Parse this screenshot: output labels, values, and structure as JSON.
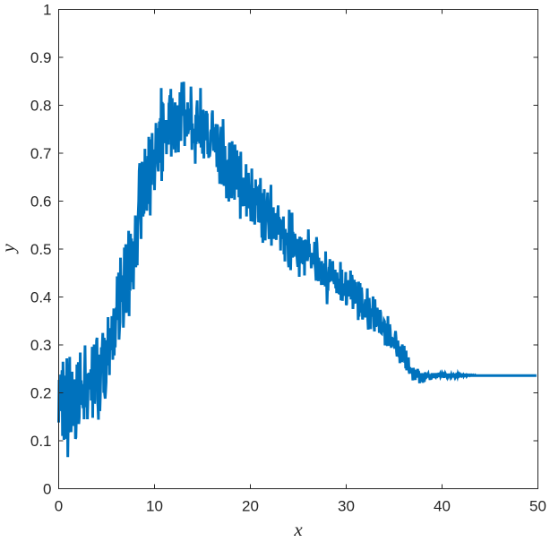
{
  "chart_data": {
    "type": "line",
    "title": "",
    "xlabel": "x",
    "ylabel": "y",
    "xlim": [
      0,
      50
    ],
    "ylim": [
      0,
      1
    ],
    "xticks": [
      0,
      10,
      20,
      30,
      40,
      50
    ],
    "yticks": [
      0,
      0.1,
      0.2,
      0.3,
      0.4,
      0.5,
      0.6,
      0.7,
      0.8,
      0.9,
      1
    ],
    "ytick_labels": [
      "0",
      "0.1",
      "0.2",
      "0.3",
      "0.4",
      "0.5",
      "0.6",
      "0.7",
      "0.8",
      "0.9",
      "1"
    ],
    "grid": false,
    "series_color": "#0072BD",
    "series": [
      {
        "name": "",
        "x_start": 0,
        "x_step": 0.05,
        "values": [
          0.138,
          0.227,
          0.201,
          0.162,
          0.238,
          0.209,
          0.219,
          0.247,
          0.11,
          0.265,
          0.214,
          0.102,
          0.114,
          0.236,
          0.131,
          0.104,
          0.189,
          0.272,
          0.22,
          0.066,
          0.145,
          0.117,
          0.165,
          0.275,
          0.137,
          0.188,
          0.118,
          0.182,
          0.244,
          0.177,
          0.207,
          0.131,
          0.15,
          0.216,
          0.228,
          0.104,
          0.107,
          0.154,
          0.259,
          0.136,
          0.213,
          0.264,
          0.135,
          0.149,
          0.198,
          0.284,
          0.175,
          0.226,
          0.207,
          0.209,
          0.182,
          0.168,
          0.213,
          0.145,
          0.242,
          0.299,
          0.218,
          0.194,
          0.17,
          0.24,
          0.145,
          0.185,
          0.241,
          0.232,
          0.242,
          0.239,
          0.207,
          0.249,
          0.184,
          0.231,
          0.296,
          0.148,
          0.259,
          0.194,
          0.301,
          0.177,
          0.287,
          0.27,
          0.249,
          0.309,
          0.315,
          0.186,
          0.172,
          0.144,
          0.28,
          0.167,
          0.162,
          0.196,
          0.247,
          0.295,
          0.255,
          0.299,
          0.325,
          0.288,
          0.2,
          0.315,
          0.197,
          0.188,
          0.204,
          0.222,
          0.31,
          0.282,
          0.257,
          0.358,
          0.267,
          0.292,
          0.237,
          0.335,
          0.325,
          0.308,
          0.289,
          0.36,
          0.317,
          0.269,
          0.335,
          0.376,
          0.278,
          0.349,
          0.295,
          0.344,
          0.378,
          0.369,
          0.443,
          0.378,
          0.352,
          0.451,
          0.311,
          0.333,
          0.347,
          0.482,
          0.436,
          0.401,
          0.39,
          0.394,
          0.445,
          0.336,
          0.369,
          0.503,
          0.37,
          0.454,
          0.51,
          0.367,
          0.378,
          0.479,
          0.475,
          0.459,
          0.538,
          0.36,
          0.473,
          0.413,
          0.532,
          0.435,
          0.522,
          0.431,
          0.516,
          0.445,
          0.416,
          0.495,
          0.491,
          0.501,
          0.57,
          0.462,
          0.509,
          0.553,
          0.466,
          0.548,
          0.574,
          0.6,
          0.663,
          0.679,
          0.652,
          0.577,
          0.521,
          0.666,
          0.682,
          0.613,
          0.568,
          0.579,
          0.574,
          0.612,
          0.709,
          0.6,
          0.672,
          0.629,
          0.58,
          0.643,
          0.694,
          0.594,
          0.734,
          0.645,
          0.729,
          0.57,
          0.66,
          0.646,
          0.634,
          0.742,
          0.648,
          0.672,
          0.659,
          0.708,
          0.623,
          0.671,
          0.697,
          0.763,
          0.701,
          0.685,
          0.752,
          0.673,
          0.662,
          0.726,
          0.766,
          0.697,
          0.773,
          0.68,
          0.836,
          0.642,
          0.807,
          0.662,
          0.804,
          0.742,
          0.721,
          0.743,
          0.728,
          0.74,
          0.769,
          0.698,
          0.758,
          0.753,
          0.723,
          0.718,
          0.803,
          0.806,
          0.821,
          0.771,
          0.834,
          0.693,
          0.778,
          0.815,
          0.735,
          0.742,
          0.788,
          0.708,
          0.725,
          0.806,
          0.701,
          0.784,
          0.737,
          0.767,
          0.8,
          0.772,
          0.702,
          0.8,
          0.733,
          0.827,
          0.73,
          0.726,
          0.809,
          0.848,
          0.822,
          0.778,
          0.801,
          0.849,
          0.776,
          0.715,
          0.791,
          0.738,
          0.739,
          0.735,
          0.758,
          0.806,
          0.74,
          0.749,
          0.785,
          0.793,
          0.749,
          0.758,
          0.839,
          0.798,
          0.707,
          0.762,
          0.721,
          0.732,
          0.737,
          0.751,
          0.746,
          0.678,
          0.78,
          0.719,
          0.793,
          0.81,
          0.762,
          0.767,
          0.724,
          0.778,
          0.72,
          0.732,
          0.836,
          0.712,
          0.725,
          0.753,
          0.699,
          0.79,
          0.788,
          0.689,
          0.769,
          0.727,
          0.737,
          0.765,
          0.788,
          0.78,
          0.783,
          0.698,
          0.721,
          0.69,
          0.715,
          0.693,
          0.703,
          0.743,
          0.749,
          0.733,
          0.782,
          0.789,
          0.729,
          0.705,
          0.754,
          0.746,
          0.71,
          0.702,
          0.761,
          0.735,
          0.671,
          0.76,
          0.753,
          0.661,
          0.689,
          0.683,
          0.636,
          0.694,
          0.738,
          0.755,
          0.695,
          0.635,
          0.66,
          0.771,
          0.709,
          0.632,
          0.636,
          0.715,
          0.645,
          0.684,
          0.606,
          0.631,
          0.685,
          0.654,
          0.687,
          0.599,
          0.718,
          0.722,
          0.611,
          0.651,
          0.617,
          0.606,
          0.725,
          0.627,
          0.717,
          0.629,
          0.642,
          0.603,
          0.718,
          0.67,
          0.702,
          0.624,
          0.706,
          0.644,
          0.659,
          0.685,
          0.608,
          0.642,
          0.694,
          0.563,
          0.703,
          0.595,
          0.648,
          0.638,
          0.589,
          0.649,
          0.597,
          0.636,
          0.59,
          0.605,
          0.614,
          0.677,
          0.568,
          0.635,
          0.652,
          0.611,
          0.659,
          0.607,
          0.585,
          0.613,
          0.59,
          0.558,
          0.627,
          0.668,
          0.596,
          0.557,
          0.627,
          0.605,
          0.595,
          0.551,
          0.567,
          0.645,
          0.591,
          0.631,
          0.591,
          0.612,
          0.617,
          0.556,
          0.61,
          0.634,
          0.555,
          0.648,
          0.565,
          0.578,
          0.524,
          0.615,
          0.513,
          0.617,
          0.54,
          0.625,
          0.585,
          0.518,
          0.572,
          0.559,
          0.565,
          0.595,
          0.618,
          0.563,
          0.549,
          0.521,
          0.533,
          0.566,
          0.602,
          0.634,
          0.507,
          0.585,
          0.567,
          0.576,
          0.587,
          0.521,
          0.575,
          0.531,
          0.575,
          0.551,
          0.519,
          0.557,
          0.534,
          0.575,
          0.591,
          0.53,
          0.567,
          0.54,
          0.563,
          0.497,
          0.561,
          0.541,
          0.554,
          0.547,
          0.521,
          0.568,
          0.489,
          0.541,
          0.474,
          0.542,
          0.524,
          0.508,
          0.534,
          0.512,
          0.532,
          0.476,
          0.462,
          0.582,
          0.557,
          0.529,
          0.456,
          0.501,
          0.516,
          0.576,
          0.482,
          0.536,
          0.506,
          0.484,
          0.517,
          0.532,
          0.519,
          0.521,
          0.492,
          0.487,
          0.472,
          0.463,
          0.521,
          0.503,
          0.442,
          0.526,
          0.47,
          0.507,
          0.524,
          0.472,
          0.515,
          0.493,
          0.468,
          0.518,
          0.513,
          0.445,
          0.519,
          0.517,
          0.496,
          0.518,
          0.5,
          0.475,
          0.486,
          0.541,
          0.498,
          0.511,
          0.488,
          0.489,
          0.492,
          0.46,
          0.47,
          0.492,
          0.487,
          0.481,
          0.468,
          0.485,
          0.515,
          0.466,
          0.455,
          0.434,
          0.525,
          0.512,
          0.485,
          0.468,
          0.433,
          0.482,
          0.446,
          0.452,
          0.457,
          0.47,
          0.425,
          0.475,
          0.431,
          0.426,
          0.43,
          0.444,
          0.44,
          0.47,
          0.422,
          0.495,
          0.434,
          0.434,
          0.385,
          0.419,
          0.413,
          0.447,
          0.46,
          0.46,
          0.479,
          0.435,
          0.436,
          0.451,
          0.458,
          0.448,
          0.475,
          0.432,
          0.434,
          0.427,
          0.443,
          0.457,
          0.418,
          0.451,
          0.408,
          0.451,
          0.417,
          0.41,
          0.424,
          0.406,
          0.438,
          0.405,
          0.473,
          0.393,
          0.418,
          0.457,
          0.392,
          0.425,
          0.422,
          0.428,
          0.406,
          0.403,
          0.422,
          0.452,
          0.383,
          0.386,
          0.427,
          0.402,
          0.421,
          0.435,
          0.401,
          0.435,
          0.408,
          0.455,
          0.395,
          0.405,
          0.446,
          0.435,
          0.375,
          0.396,
          0.41,
          0.436,
          0.386,
          0.407,
          0.431,
          0.388,
          0.391,
          0.417,
          0.4,
          0.352,
          0.432,
          0.359,
          0.405,
          0.429,
          0.367,
          0.398,
          0.42,
          0.404,
          0.353,
          0.358,
          0.373,
          0.363,
          0.358,
          0.385,
          0.395,
          0.357,
          0.392,
          0.38,
          0.418,
          0.353,
          0.332,
          0.374,
          0.398,
          0.374,
          0.37,
          0.333,
          0.376,
          0.373,
          0.359,
          0.365,
          0.401,
          0.386,
          0.338,
          0.328,
          0.395,
          0.359,
          0.338,
          0.341,
          0.375,
          0.375,
          0.366,
          0.34,
          0.36,
          0.325,
          0.358,
          0.373,
          0.367,
          0.325,
          0.324,
          0.336,
          0.348,
          0.326,
          0.34,
          0.351,
          0.349,
          0.299,
          0.344,
          0.301,
          0.345,
          0.304,
          0.298,
          0.36,
          0.298,
          0.328,
          0.31,
          0.343,
          0.329,
          0.304,
          0.294,
          0.317,
          0.297,
          0.311,
          0.315,
          0.306,
          0.305,
          0.292,
          0.321,
          0.329,
          0.315,
          0.286,
          0.276,
          0.291,
          0.309,
          0.281,
          0.275,
          0.285,
          0.262,
          0.297,
          0.293,
          0.283,
          0.264,
          0.301,
          0.288,
          0.286,
          0.267,
          0.298,
          0.263,
          0.287,
          0.251,
          0.288,
          0.247,
          0.256,
          0.264,
          0.265,
          0.274,
          0.245,
          0.24,
          0.253,
          0.25,
          0.244,
          0.251,
          0.246,
          0.249,
          0.226,
          0.252,
          0.248,
          0.243,
          0.248,
          0.227,
          0.238,
          0.234,
          0.234,
          0.238,
          0.25,
          0.242,
          0.246,
          0.238,
          0.22,
          0.235,
          0.238,
          0.223,
          0.241,
          0.232,
          0.237,
          0.221,
          0.241,
          0.231,
          0.223,
          0.232,
          0.243,
          0.234,
          0.232,
          0.233,
          0.234,
          0.238,
          0.24,
          0.234,
          0.239,
          0.232,
          0.227,
          0.233,
          0.228,
          0.232,
          0.241,
          0.231,
          0.234,
          0.239,
          0.231,
          0.241,
          0.234,
          0.233,
          0.241,
          0.237,
          0.231,
          0.236,
          0.239,
          0.233,
          0.242,
          0.233,
          0.238,
          0.24,
          0.234,
          0.236,
          0.239,
          0.232,
          0.24,
          0.238,
          0.239,
          0.231,
          0.241,
          0.234,
          0.24,
          0.238,
          0.235,
          0.233,
          0.239,
          0.232,
          0.24,
          0.236,
          0.239,
          0.233,
          0.24,
          0.235,
          0.238,
          0.234,
          0.236,
          0.237,
          0.238,
          0.232,
          0.24,
          0.236,
          0.239,
          0.233,
          0.235,
          0.238,
          0.237,
          0.234,
          0.239,
          0.236,
          0.238,
          0.235,
          0.236,
          0.238,
          0.236,
          0.237,
          0.235,
          0.236,
          0.237,
          0.238,
          0.235,
          0.237,
          0.236,
          0.237,
          0.236,
          0.237,
          0.235,
          0.237,
          0.236,
          0.237,
          0.236,
          0.236,
          0.237,
          0.236,
          0.237,
          0.236,
          0.236,
          0.237,
          0.236,
          0.236,
          0.237,
          0.236,
          0.236,
          0.236,
          0.237,
          0.236,
          0.236,
          0.236,
          0.236,
          0.236,
          0.236,
          0.236,
          0.236,
          0.236,
          0.236,
          0.236,
          0.236,
          0.236,
          0.236,
          0.236,
          0.236,
          0.236,
          0.236,
          0.236,
          0.236,
          0.236,
          0.236,
          0.236,
          0.236,
          0.236,
          0.236,
          0.236,
          0.236,
          0.236,
          0.236,
          0.236,
          0.236,
          0.236,
          0.236,
          0.236,
          0.236,
          0.236,
          0.236,
          0.236,
          0.236,
          0.236,
          0.236,
          0.236,
          0.236,
          0.236,
          0.236,
          0.236,
          0.236,
          0.236,
          0.236,
          0.236,
          0.236,
          0.236,
          0.236,
          0.236,
          0.236,
          0.236,
          0.236,
          0.236,
          0.236,
          0.236,
          0.236,
          0.236,
          0.236,
          0.236,
          0.236,
          0.236,
          0.236,
          0.236,
          0.236,
          0.236,
          0.236,
          0.236,
          0.236,
          0.236,
          0.236,
          0.236,
          0.236,
          0.236,
          0.236,
          0.236,
          0.236,
          0.236,
          0.236,
          0.236,
          0.236,
          0.236,
          0.236,
          0.236,
          0.236,
          0.236,
          0.236,
          0.236,
          0.236,
          0.236,
          0.236,
          0.236,
          0.236,
          0.236,
          0.236,
          0.236,
          0.236,
          0.236,
          0.236,
          0.236,
          0.236,
          0.236,
          0.236,
          0.236,
          0.236,
          0.236,
          0.236,
          0.236,
          0.236,
          0.236,
          0.236,
          0.236,
          0.236,
          0.236,
          0.236,
          0.236,
          0.236,
          0.236,
          0.236,
          0.236,
          0.236,
          0.236,
          0.236
        ]
      }
    ]
  }
}
